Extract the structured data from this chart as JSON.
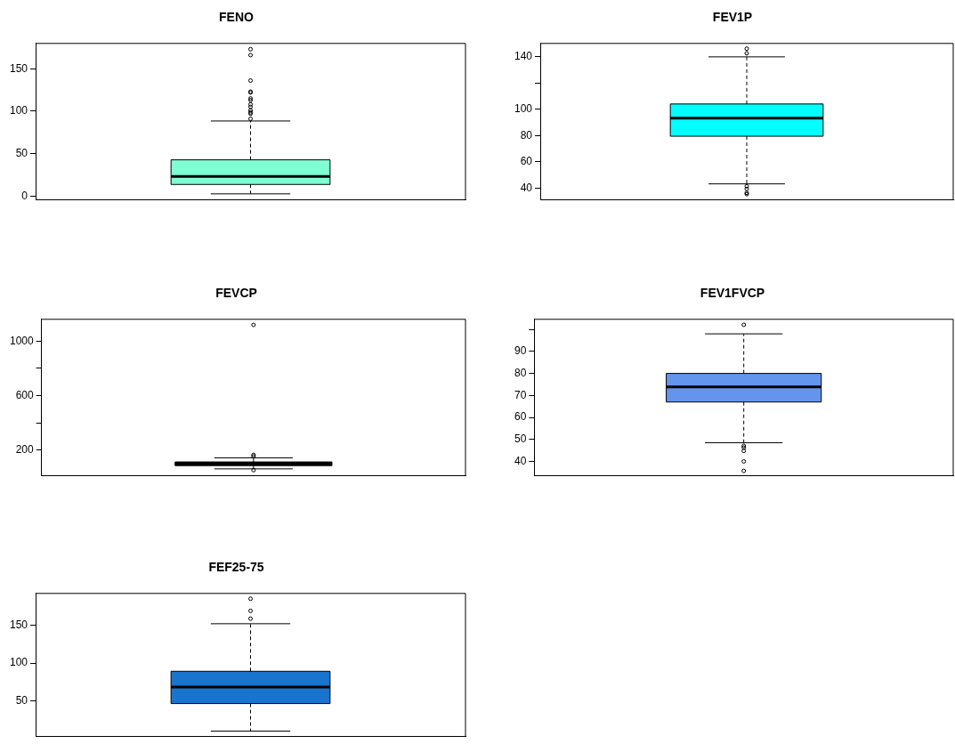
{
  "chart_data": [
    {
      "type": "box",
      "title": "FENO",
      "categories": [
        null
      ],
      "color": "#7fffd4",
      "ylim": [
        -4.8,
        179.8
      ],
      "yticks": [
        0,
        50,
        100,
        150
      ],
      "legend": false,
      "boxes": [
        {
          "low": 2.5,
          "q1": 13.6,
          "median": 23,
          "q3": 42.6,
          "high": 88.4,
          "outliers": [
            91,
            97,
            98.5,
            101,
            105,
            108,
            113,
            115,
            122,
            123,
            136,
            166,
            173
          ]
        }
      ]
    },
    {
      "type": "box",
      "title": "FEV1P",
      "categories": [
        null
      ],
      "color": "#00ffff",
      "ylim": [
        31,
        150
      ],
      "yticks": [
        40,
        60,
        80,
        100,
        {
          "value": 120,
          "label": null
        },
        140
      ],
      "legend": false,
      "boxes": [
        {
          "low": 43.3,
          "q1": 79.5,
          "median": 93.2,
          "q3": 104,
          "high": 139.8,
          "outliers": [
            146,
            142.5,
            41.5,
            39.5,
            36.5,
            35.5
          ]
        }
      ]
    },
    {
      "type": "box",
      "title": "FEVCP",
      "categories": [
        null
      ],
      "color": "#000000",
      "ylim": [
        9,
        1160
      ],
      "yticks": [
        200,
        {
          "value": 400,
          "label": null
        },
        600,
        {
          "value": 800,
          "label": null
        },
        1000
      ],
      "legend": false,
      "boxes": [
        {
          "low": 61,
          "q1": 85,
          "median": 99,
          "q3": 112,
          "high": 142,
          "outliers": [
            153,
            164,
            52,
            1119
          ]
        }
      ]
    },
    {
      "type": "box",
      "title": "FEV1FVCP",
      "categories": [
        null
      ],
      "color": "#6495ed",
      "ylim": [
        33.4,
        104.6
      ],
      "yticks": [
        40,
        50,
        60,
        70,
        80,
        90,
        {
          "value": 100,
          "label": null
        }
      ],
      "legend": false,
      "boxes": [
        {
          "low": 48.5,
          "q1": 67,
          "median": 73.9,
          "q3": 80,
          "high": 98,
          "outliers": [
            102.1,
            47.1,
            46.3,
            44.8,
            40,
            35.7
          ]
        }
      ]
    },
    {
      "type": "box",
      "title": "FEF25-75",
      "categories": [
        null
      ],
      "color": "#1874cd",
      "ylim": [
        3,
        192
      ],
      "yticks": [
        50,
        100,
        150
      ],
      "legend": false,
      "boxes": [
        {
          "low": 10.4,
          "q1": 46.7,
          "median": 68.5,
          "q3": 89.3,
          "high": 152,
          "outliers": [
            158.7,
            169,
            185
          ]
        }
      ]
    }
  ]
}
